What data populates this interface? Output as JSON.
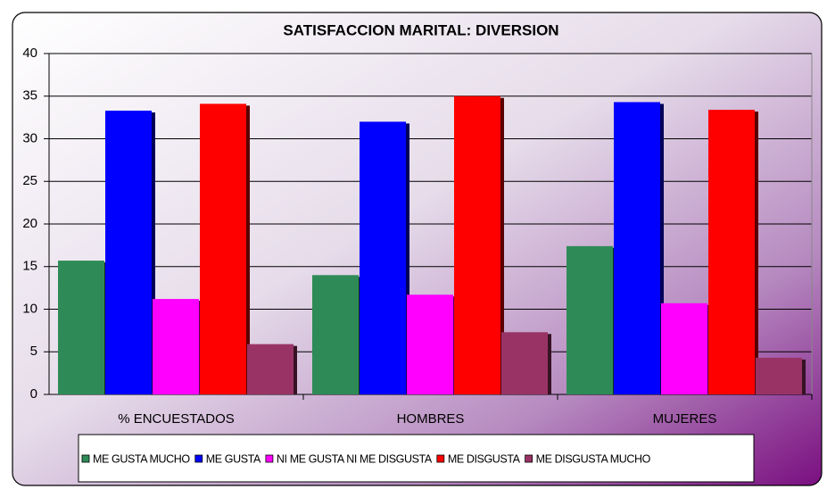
{
  "chart_data": {
    "type": "bar",
    "title": "SATISFACCION MARITAL:  DIVERSION",
    "categories": [
      "% ENCUESTADOS",
      "HOMBRES",
      "MUJERES"
    ],
    "series": [
      {
        "name": "ME GUSTA MUCHO",
        "color": "#2e8b57",
        "values": [
          15.7,
          14.0,
          17.4
        ]
      },
      {
        "name": "ME GUSTA",
        "color": "#0000ff",
        "values": [
          33.3,
          32.0,
          34.3
        ]
      },
      {
        "name": "NI ME GUSTA NI ME DISGUSTA",
        "color": "#ff00ff",
        "values": [
          11.2,
          11.7,
          10.7
        ]
      },
      {
        "name": "ME DISGUSTA",
        "color": "#ff0000",
        "values": [
          34.1,
          35.0,
          33.4
        ]
      },
      {
        "name": "ME DISGUSTA MUCHO",
        "color": "#993366",
        "values": [
          5.9,
          7.3,
          4.3
        ]
      }
    ],
    "ylim": [
      0,
      40
    ],
    "yticks": [
      0,
      5,
      10,
      15,
      20,
      25,
      30,
      35,
      40
    ],
    "grid": true,
    "legend": "bottom"
  }
}
